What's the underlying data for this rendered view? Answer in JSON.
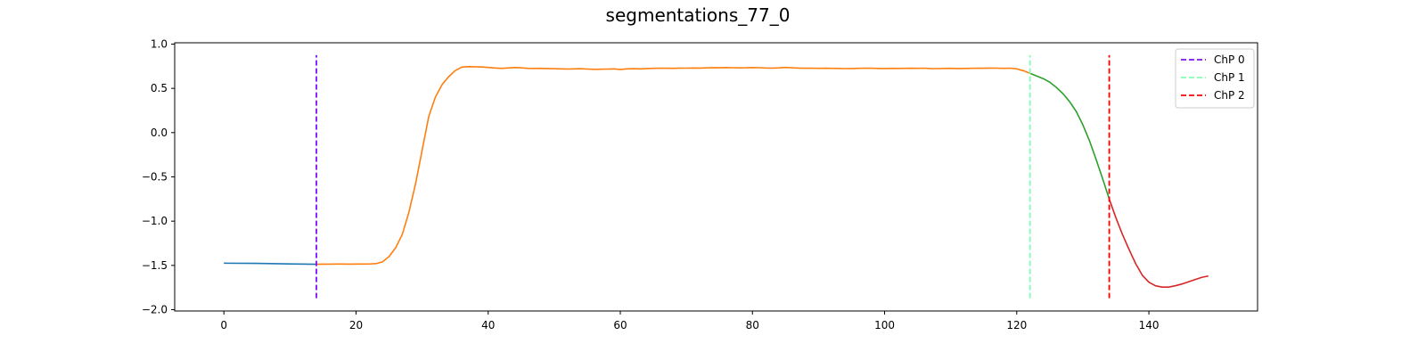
{
  "chart_data": {
    "type": "line",
    "title": "segmentations_77_0",
    "xlabel": "",
    "ylabel": "",
    "xlim": [
      -7.45,
      156.45
    ],
    "ylim": [
      -2.015,
      1.015
    ],
    "xticks": [
      0,
      20,
      40,
      60,
      80,
      100,
      120,
      140
    ],
    "yticks": [
      -2.0,
      -1.5,
      -1.0,
      -0.5,
      0.0,
      0.5,
      1.0
    ],
    "xtick_labels": [
      "0",
      "20",
      "40",
      "60",
      "80",
      "100",
      "120",
      "140"
    ],
    "ytick_labels": [
      "−2.0",
      "−1.5",
      "−1.0",
      "−0.5",
      "0.0",
      "0.5",
      "1.0"
    ],
    "grid": false,
    "legend_position": "top-right",
    "series": [
      {
        "color": "#1f77b4",
        "x": [
          0,
          5,
          10,
          14
        ],
        "y": [
          -1.475,
          -1.477,
          -1.483,
          -1.487
        ]
      },
      {
        "color": "#ff7f0e",
        "x": [
          14,
          15,
          16,
          17,
          18,
          19,
          20,
          21,
          22,
          23,
          24,
          25,
          26,
          27,
          28,
          29,
          30,
          31,
          32,
          33,
          34,
          35,
          36,
          37,
          38,
          39,
          40,
          41,
          42,
          43,
          44,
          45,
          46,
          47,
          48,
          49,
          50,
          51,
          52,
          53,
          54,
          55,
          56,
          57,
          58,
          59,
          60,
          61,
          62,
          63,
          64,
          65,
          66,
          67,
          68,
          69,
          70,
          71,
          72,
          73,
          74,
          75,
          76,
          77,
          78,
          79,
          80,
          81,
          82,
          83,
          84,
          85,
          86,
          87,
          88,
          89,
          90,
          91,
          92,
          93,
          94,
          95,
          96,
          97,
          98,
          99,
          100,
          101,
          102,
          103,
          104,
          105,
          106,
          107,
          108,
          109,
          110,
          111,
          112,
          113,
          114,
          115,
          116,
          117,
          118,
          119,
          120,
          121,
          122
        ],
        "y": [
          -1.487,
          -1.486,
          -1.486,
          -1.485,
          -1.485,
          -1.486,
          -1.485,
          -1.485,
          -1.484,
          -1.48,
          -1.46,
          -1.4,
          -1.3,
          -1.15,
          -0.9,
          -0.58,
          -0.2,
          0.18,
          0.4,
          0.54,
          0.63,
          0.7,
          0.74,
          0.745,
          0.744,
          0.741,
          0.736,
          0.73,
          0.726,
          0.73,
          0.735,
          0.732,
          0.726,
          0.725,
          0.726,
          0.724,
          0.722,
          0.72,
          0.718,
          0.72,
          0.722,
          0.718,
          0.715,
          0.716,
          0.718,
          0.72,
          0.714,
          0.72,
          0.722,
          0.72,
          0.724,
          0.726,
          0.728,
          0.727,
          0.726,
          0.729,
          0.728,
          0.73,
          0.729,
          0.731,
          0.734,
          0.732,
          0.735,
          0.733,
          0.731,
          0.732,
          0.735,
          0.733,
          0.73,
          0.729,
          0.731,
          0.736,
          0.732,
          0.729,
          0.727,
          0.728,
          0.726,
          0.727,
          0.726,
          0.725,
          0.723,
          0.724,
          0.726,
          0.728,
          0.727,
          0.725,
          0.724,
          0.726,
          0.725,
          0.726,
          0.727,
          0.726,
          0.728,
          0.724,
          0.723,
          0.725,
          0.726,
          0.724,
          0.725,
          0.726,
          0.728,
          0.727,
          0.729,
          0.728,
          0.726,
          0.728,
          0.72,
          0.7,
          0.67
        ]
      },
      {
        "color": "#2ca02c",
        "x": [
          122,
          123,
          124,
          125,
          126,
          127,
          128,
          129,
          130,
          131,
          132,
          133,
          134
        ],
        "y": [
          0.67,
          0.64,
          0.61,
          0.57,
          0.51,
          0.44,
          0.35,
          0.24,
          0.09,
          -0.09,
          -0.3,
          -0.52,
          -0.75
        ]
      },
      {
        "color": "#d62728",
        "x": [
          134,
          135,
          136,
          137,
          138,
          139,
          140,
          141,
          142,
          143,
          144,
          145,
          146,
          147,
          148,
          149
        ],
        "y": [
          -0.75,
          -0.96,
          -1.15,
          -1.32,
          -1.48,
          -1.61,
          -1.69,
          -1.73,
          -1.745,
          -1.745,
          -1.73,
          -1.71,
          -1.685,
          -1.66,
          -1.635,
          -1.62
        ]
      }
    ],
    "changepoints": [
      {
        "name": "ChP 0",
        "x": 14,
        "color": "#8010f0"
      },
      {
        "name": "ChP 1",
        "x": 122,
        "color": "#80ffb4"
      },
      {
        "name": "ChP 2",
        "x": 134,
        "color": "#ff0000"
      }
    ],
    "changepoint_span": [
      -1.87,
      0.875
    ]
  }
}
